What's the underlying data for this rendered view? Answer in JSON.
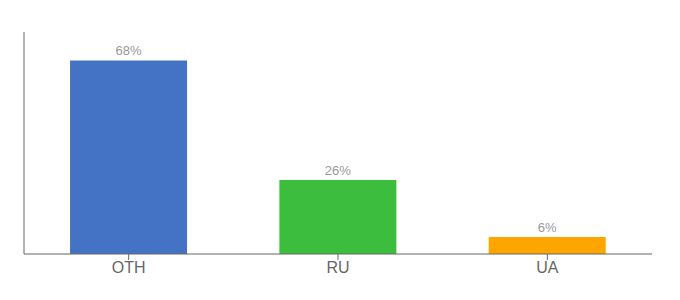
{
  "chart_data": {
    "type": "bar",
    "categories": [
      "OTH",
      "RU",
      "UA"
    ],
    "values": [
      68,
      26,
      6
    ],
    "value_labels": [
      "68%",
      "26%",
      "6%"
    ],
    "colors": [
      "#4472C4",
      "#3DBD3D",
      "#FFA500"
    ],
    "ylim": [
      0,
      78
    ],
    "data_labels": true,
    "tick_labels": "x",
    "grid": false
  }
}
